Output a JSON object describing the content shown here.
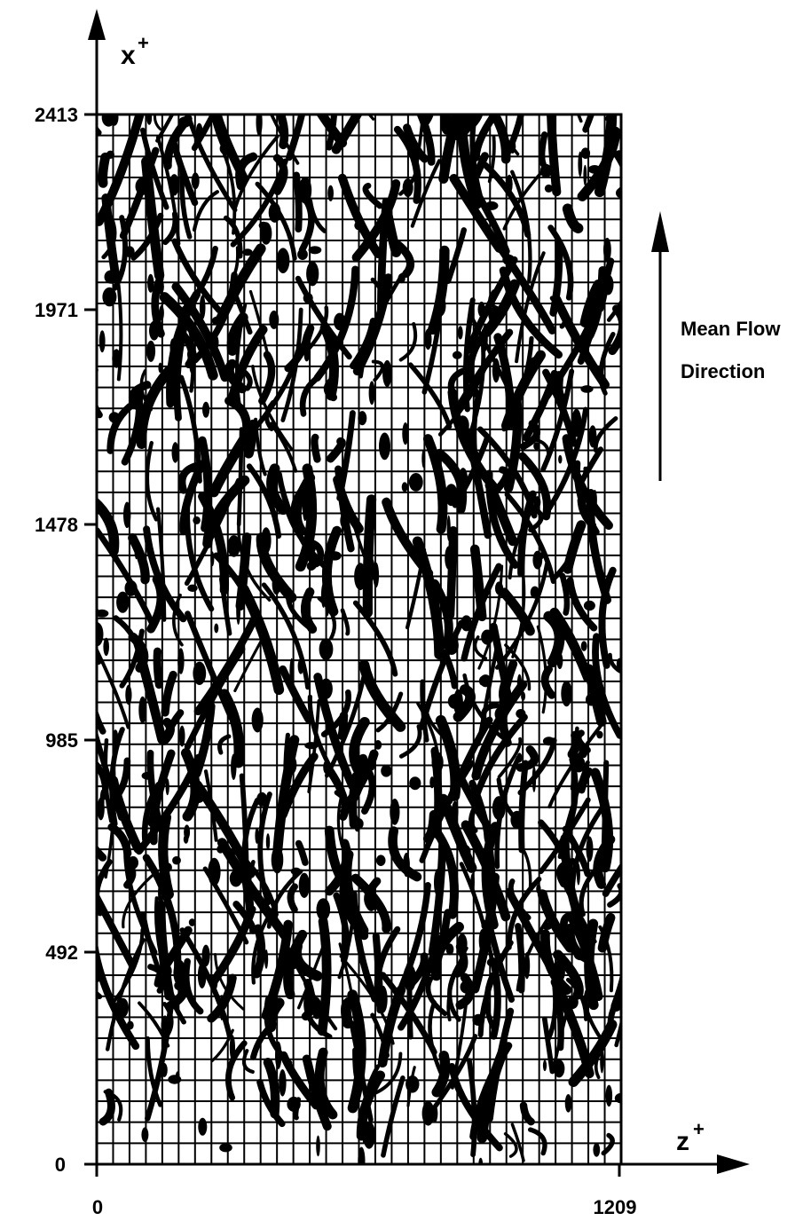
{
  "figure": {
    "x_axis_title": "x",
    "x_axis_superscript": "+",
    "z_axis_title": "z",
    "z_axis_superscript": "+",
    "annotation_line1": "Mean Flow",
    "annotation_line2": "Direction"
  },
  "chart_data": {
    "type": "heatmap",
    "x_axis": {
      "label": "x+",
      "range": [
        0,
        2413
      ],
      "ticks": [
        "2413",
        "1971",
        "1478",
        "985",
        "492",
        "0"
      ]
    },
    "z_axis": {
      "label": "z+",
      "range": [
        0,
        1209
      ],
      "ticks": [
        "0",
        "1209"
      ]
    },
    "grid": true,
    "mean_flow_direction": "up (+x)",
    "ink_color": "#000000",
    "background_color": "#ffffff"
  }
}
